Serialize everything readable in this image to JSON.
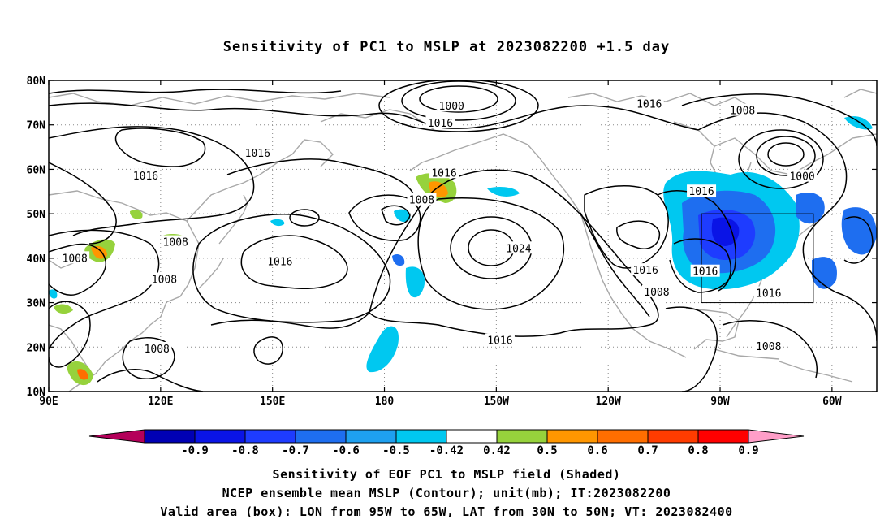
{
  "title": "Sensitivity of PC1 to MSLP at 2023082200 +1.5 day",
  "captions": [
    "Sensitivity of EOF PC1 to MSLP field (Shaded)",
    "NCEP ensemble mean MSLP (Contour); unit(mb); IT:2023082200",
    "Valid area (box): LON from 95W to 65W, LAT from 30N to 50N; VT: 2023082400"
  ],
  "map": {
    "lon_range": [
      90,
      312
    ],
    "lat_range": [
      10,
      80
    ],
    "lon_ticks": [
      {
        "lon": 90,
        "label": "90E"
      },
      {
        "lon": 120,
        "label": "120E"
      },
      {
        "lon": 150,
        "label": "150E"
      },
      {
        "lon": 180,
        "label": "180"
      },
      {
        "lon": 210,
        "label": "150W"
      },
      {
        "lon": 240,
        "label": "120W"
      },
      {
        "lon": 270,
        "label": "90W"
      },
      {
        "lon": 300,
        "label": "60W"
      }
    ],
    "lat_ticks": [
      {
        "lat": 80,
        "label": "80N"
      },
      {
        "lat": 70,
        "label": "70N"
      },
      {
        "lat": 60,
        "label": "60N"
      },
      {
        "lat": 50,
        "label": "50N"
      },
      {
        "lat": 40,
        "label": "40N"
      },
      {
        "lat": 30,
        "label": "30N"
      },
      {
        "lat": 20,
        "label": "20N"
      },
      {
        "lat": 10,
        "label": "10N"
      }
    ],
    "valid_box": {
      "lon": [
        265,
        295
      ],
      "lat": [
        30,
        50
      ]
    },
    "contour_labels": [
      {
        "text": "1000",
        "lon": 198,
        "lat": 74.3
      },
      {
        "text": "1016",
        "lon": 195,
        "lat": 70.5
      },
      {
        "text": "1016",
        "lon": 251,
        "lat": 74.8
      },
      {
        "text": "1008",
        "lon": 276,
        "lat": 73.3
      },
      {
        "text": "1000",
        "lon": 292,
        "lat": 58.5
      },
      {
        "text": "1016",
        "lon": 146,
        "lat": 63.7
      },
      {
        "text": "1016",
        "lon": 116,
        "lat": 58.6
      },
      {
        "text": "1016",
        "lon": 196,
        "lat": 59.3
      },
      {
        "text": "1008",
        "lon": 190,
        "lat": 53.2
      },
      {
        "text": "1016",
        "lon": 265,
        "lat": 55.1
      },
      {
        "text": "1008",
        "lon": 124,
        "lat": 43.7
      },
      {
        "text": "1008",
        "lon": 97,
        "lat": 40.1
      },
      {
        "text": "1016",
        "lon": 152,
        "lat": 39.3
      },
      {
        "text": "1024",
        "lon": 216,
        "lat": 42.3
      },
      {
        "text": "1016",
        "lon": 250,
        "lat": 37.4
      },
      {
        "text": "1016",
        "lon": 266,
        "lat": 37.1
      },
      {
        "text": "1008",
        "lon": 121,
        "lat": 35.3
      },
      {
        "text": "1008",
        "lon": 253,
        "lat": 32.5
      },
      {
        "text": "1016",
        "lon": 283,
        "lat": 32.2
      },
      {
        "text": "1016",
        "lon": 211,
        "lat": 21.6
      },
      {
        "text": "1008",
        "lon": 119,
        "lat": 19.7
      },
      {
        "text": "1008",
        "lon": 283,
        "lat": 20.2
      }
    ]
  },
  "colorbar": {
    "labels": [
      "-0.9",
      "-0.8",
      "-0.7",
      "-0.6",
      "-0.5",
      "-0.42",
      "0.42",
      "0.5",
      "0.6",
      "0.7",
      "0.8",
      "0.9"
    ],
    "colors": [
      "#b4005a",
      "#0000b4",
      "#0a14e6",
      "#1e3cff",
      "#1e6ef0",
      "#1ea0f0",
      "#00c8f0",
      "#ffffff",
      "#96d23c",
      "#ff9600",
      "#ff6e00",
      "#ff3c00",
      "#ff0000",
      "#ff9ec8"
    ]
  }
}
